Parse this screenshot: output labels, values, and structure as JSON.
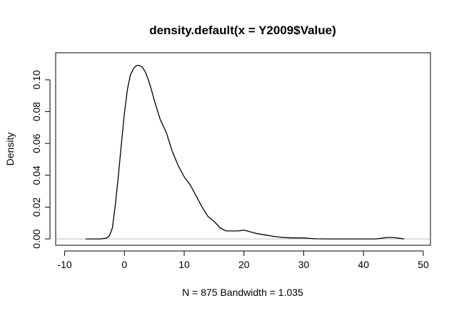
{
  "chart_data": {
    "type": "line",
    "title": "density.default(x = Y2009$Value)",
    "xlabel": "N = 875   Bandwidth = 1.035",
    "ylabel": "Density",
    "xlim": [
      -11.5,
      51.2
    ],
    "ylim": [
      -0.004,
      0.117
    ],
    "x_ticks": [
      -10,
      0,
      10,
      20,
      30,
      40,
      50
    ],
    "x_tick_labels": [
      "-10",
      "0",
      "10",
      "20",
      "30",
      "40",
      "50"
    ],
    "y_ticks": [
      0.0,
      0.02,
      0.04,
      0.06,
      0.08,
      0.1
    ],
    "y_tick_labels": [
      "0.00",
      "0.02",
      "0.04",
      "0.06",
      "0.08",
      "0.10"
    ],
    "zero_line": true,
    "grid": false,
    "series": [
      {
        "x": [
          -6.5,
          -4.0,
          -3.0,
          -2.5,
          -2.0,
          -1.5,
          -1.0,
          -0.5,
          0.0,
          0.5,
          1.0,
          1.5,
          2.0,
          2.5,
          3.0,
          3.5,
          4.0,
          4.5,
          5.0,
          5.5,
          6.0,
          7.0,
          8.0,
          9.0,
          10.0,
          11.0,
          12.0,
          13.0,
          14.0,
          15.0,
          16.0,
          17.0,
          18.0,
          19.0,
          20.0,
          21.0,
          22.0,
          23.0,
          24.0,
          25.0,
          26.0,
          27.0,
          28.0,
          29.0,
          30.0,
          31.0,
          32.0,
          34.0,
          36.0,
          38.0,
          40.0,
          42.0,
          43.0,
          44.0,
          45.0,
          46.0,
          46.8
        ],
        "y": [
          0.0,
          0.0,
          0.0005,
          0.002,
          0.007,
          0.022,
          0.04,
          0.06,
          0.079,
          0.094,
          0.103,
          0.107,
          0.109,
          0.109,
          0.108,
          0.105,
          0.1,
          0.094,
          0.087,
          0.081,
          0.075,
          0.067,
          0.055,
          0.046,
          0.039,
          0.034,
          0.027,
          0.02,
          0.014,
          0.011,
          0.007,
          0.005,
          0.005,
          0.005,
          0.0055,
          0.0045,
          0.0035,
          0.0028,
          0.0022,
          0.0016,
          0.0011,
          0.0008,
          0.0006,
          0.0006,
          0.0006,
          0.0003,
          0.0001,
          0.0,
          0.0,
          0.0,
          0.0,
          0.0,
          0.0004,
          0.0009,
          0.0009,
          0.0004,
          0.0
        ]
      }
    ]
  }
}
